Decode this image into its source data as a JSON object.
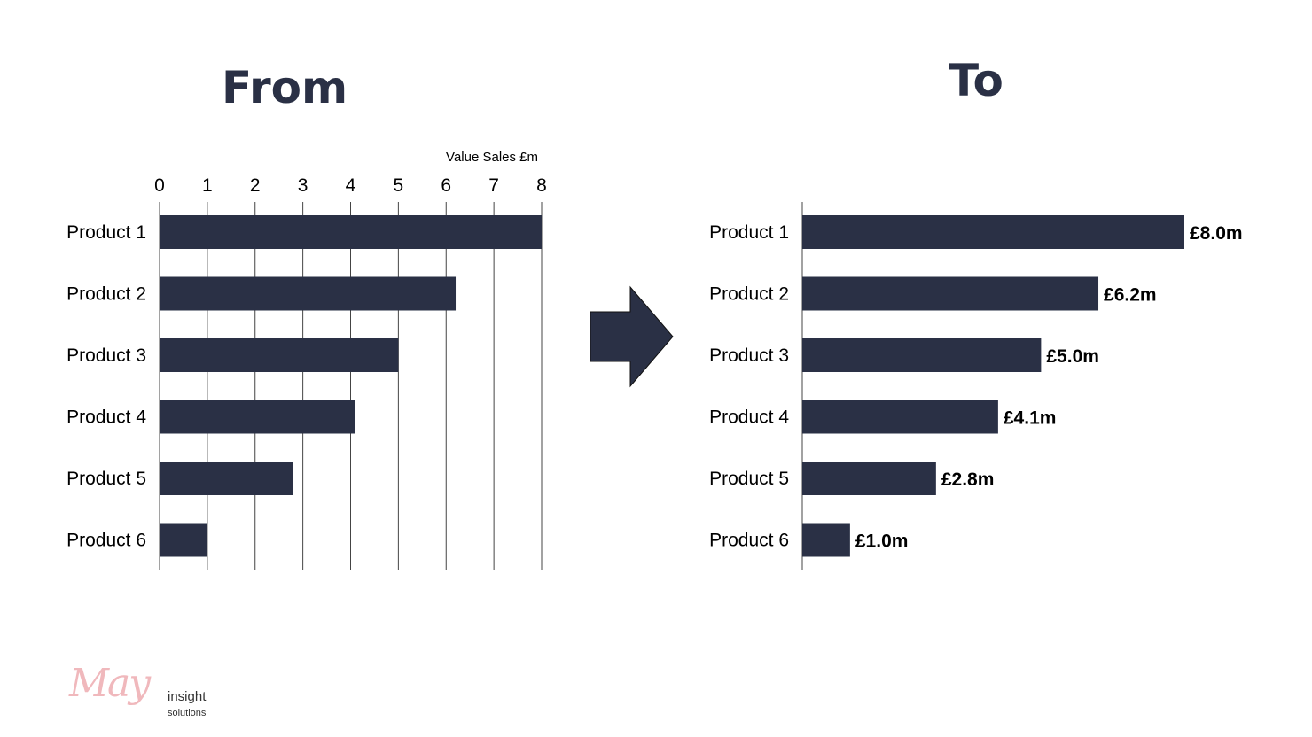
{
  "colors": {
    "bar": "#2a3045",
    "heading": "#2a3045",
    "grid": "#444444",
    "logo_script": "#f0b8bc"
  },
  "left_heading": "From",
  "right_heading": "To",
  "chart_data": [
    {
      "type": "bar",
      "orientation": "horizontal",
      "title": "",
      "xlabel": "Value Sales £m",
      "ylabel": "",
      "categories": [
        "Product 1",
        "Product 2",
        "Product 3",
        "Product 4",
        "Product 5",
        "Product 6"
      ],
      "values": [
        8.0,
        6.2,
        5.0,
        4.1,
        2.8,
        1.0
      ],
      "xlim": [
        0,
        8
      ],
      "xticks": [
        "0",
        "1",
        "2",
        "3",
        "4",
        "5",
        "6",
        "7",
        "8"
      ],
      "grid": true,
      "axis_position": "top",
      "data_labels": []
    },
    {
      "type": "bar",
      "orientation": "horizontal",
      "title": "",
      "xlabel": "",
      "ylabel": "",
      "categories": [
        "Product 1",
        "Product 2",
        "Product 3",
        "Product 4",
        "Product 5",
        "Product 6"
      ],
      "values": [
        8.0,
        6.2,
        5.0,
        4.1,
        2.8,
        1.0
      ],
      "xlim": [
        0,
        8
      ],
      "xticks": [],
      "grid": false,
      "data_labels": [
        "£8.0m",
        "£6.2m",
        "£5.0m",
        "£4.1m",
        "£2.8m",
        "£1.0m"
      ]
    }
  ],
  "logo": {
    "script": "May",
    "word1": "insight",
    "word2": "solutions"
  }
}
